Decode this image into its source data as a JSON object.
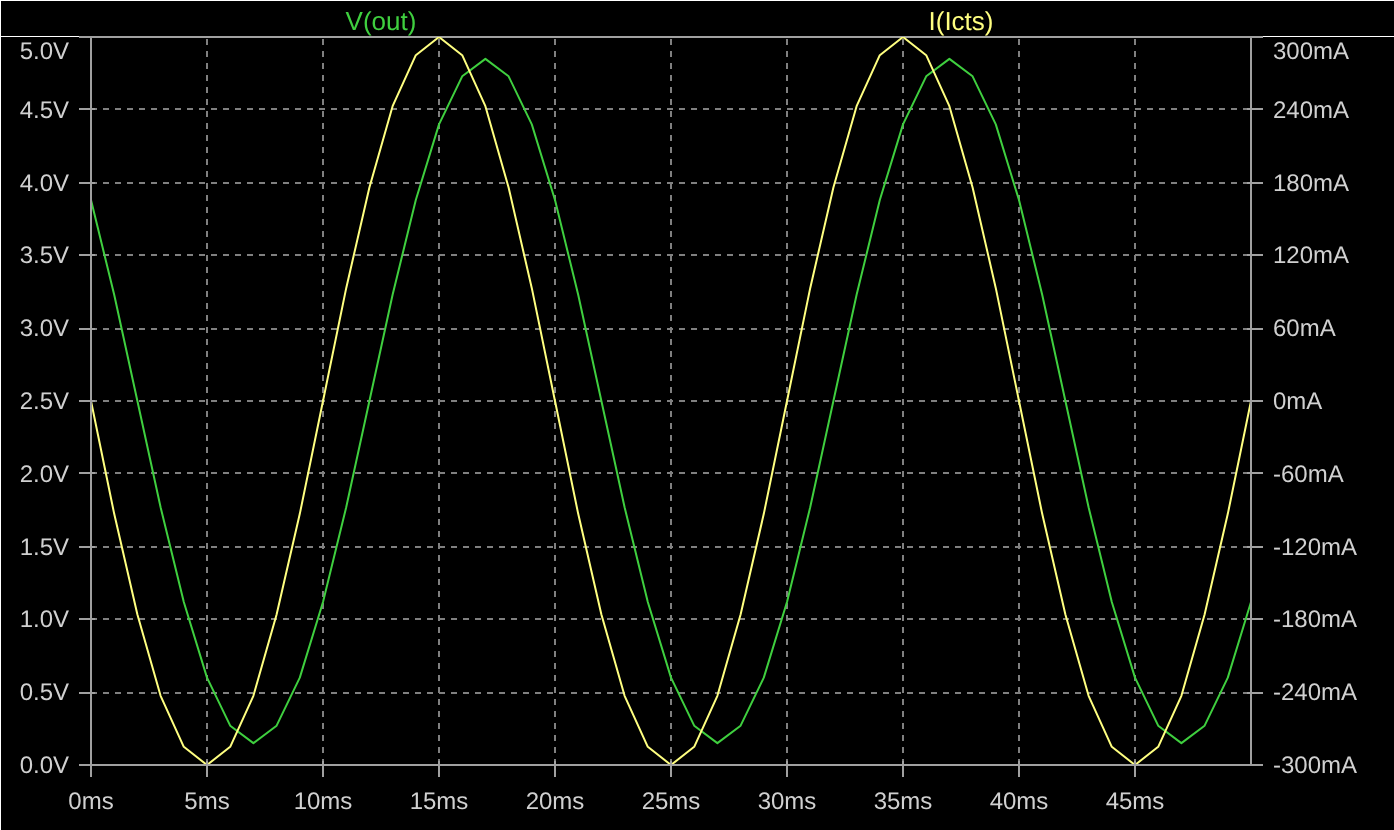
{
  "chart_data": {
    "type": "line",
    "x": [
      0,
      1,
      2,
      3,
      4,
      5,
      6,
      7,
      8,
      9,
      10,
      11,
      12,
      13,
      14,
      15,
      16,
      17,
      18,
      19,
      20,
      21,
      22,
      23,
      24,
      25,
      26,
      27,
      28,
      29,
      30,
      31,
      32,
      33,
      34,
      35,
      36,
      37,
      38,
      39,
      40,
      41,
      42,
      43,
      44,
      45,
      46,
      47,
      48,
      49,
      50
    ],
    "series": [
      {
        "name": "V(out)",
        "color": "#3fcf3f",
        "values": [
          3.88,
          3.23,
          2.5,
          1.77,
          1.12,
          0.6,
          0.27,
          0.15,
          0.27,
          0.6,
          1.12,
          1.77,
          2.5,
          3.23,
          3.88,
          4.4,
          4.73,
          4.85,
          4.73,
          4.4,
          3.88,
          3.23,
          2.5,
          1.77,
          1.12,
          0.6,
          0.27,
          0.15,
          0.27,
          0.6,
          1.12,
          1.77,
          2.5,
          3.23,
          3.88,
          4.4,
          4.73,
          4.85,
          4.73,
          4.4,
          3.88,
          3.23,
          2.5,
          1.77,
          1.12,
          0.6,
          0.27,
          0.15,
          0.27,
          0.6,
          1.12
        ]
      },
      {
        "name": "I(Icts)",
        "color": "#ffff80",
        "axis": "y2",
        "values": [
          0,
          -93,
          -176,
          -243,
          -285,
          -300,
          -285,
          -243,
          -176,
          -93,
          0,
          93,
          176,
          243,
          285,
          300,
          285,
          243,
          176,
          93,
          0,
          -93,
          -176,
          -243,
          -285,
          -300,
          -285,
          -243,
          -176,
          -93,
          0,
          93,
          176,
          243,
          285,
          300,
          285,
          243,
          176,
          93,
          0,
          -93,
          -176,
          -243,
          -285,
          -300,
          -285,
          -243,
          -176,
          -93,
          0
        ]
      }
    ],
    "xlim": [
      0,
      50
    ],
    "xticks": [
      {
        "value": 0,
        "label": "0ms"
      },
      {
        "value": 5,
        "label": "5ms"
      },
      {
        "value": 10,
        "label": "10ms"
      },
      {
        "value": 15,
        "label": "15ms"
      },
      {
        "value": 20,
        "label": "20ms"
      },
      {
        "value": 25,
        "label": "25ms"
      },
      {
        "value": 30,
        "label": "30ms"
      },
      {
        "value": 35,
        "label": "35ms"
      },
      {
        "value": 40,
        "label": "40ms"
      },
      {
        "value": 45,
        "label": "45ms"
      }
    ],
    "ylim": [
      0,
      5
    ],
    "yticks": [
      {
        "value": 0,
        "label": "0.0V"
      },
      {
        "value": 0.5,
        "label": "0.5V"
      },
      {
        "value": 1,
        "label": "1.0V"
      },
      {
        "value": 1.5,
        "label": "1.5V"
      },
      {
        "value": 2,
        "label": "2.0V"
      },
      {
        "value": 2.5,
        "label": "2.5V"
      },
      {
        "value": 3,
        "label": "3.0V"
      },
      {
        "value": 3.5,
        "label": "3.5V"
      },
      {
        "value": 4,
        "label": "4.0V"
      },
      {
        "value": 4.5,
        "label": "4.5V"
      },
      {
        "value": 5,
        "label": "5.0V"
      }
    ],
    "y2lim": [
      -300,
      300
    ],
    "y2ticks": [
      {
        "value": -300,
        "label": "-300mA"
      },
      {
        "value": -240,
        "label": "-240mA"
      },
      {
        "value": -180,
        "label": "-180mA"
      },
      {
        "value": -120,
        "label": "-120mA"
      },
      {
        "value": -60,
        "label": "-60mA"
      },
      {
        "value": 0,
        "label": "0mA"
      },
      {
        "value": 60,
        "label": "60mA"
      },
      {
        "value": 120,
        "label": "120mA"
      },
      {
        "value": 180,
        "label": "180mA"
      },
      {
        "value": 240,
        "label": "240mA"
      },
      {
        "value": 300,
        "label": "300mA"
      }
    ],
    "grid": true,
    "marker": "none",
    "line_style": "solid"
  }
}
